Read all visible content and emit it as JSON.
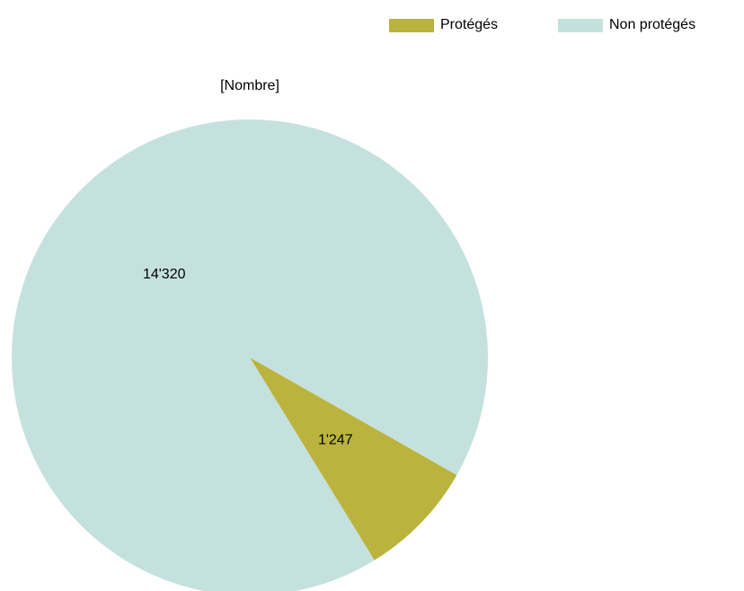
{
  "chart_data": {
    "type": "pie",
    "title": "[Nombre]",
    "categories": [
      "Protégés",
      "Non protégés"
    ],
    "values": [
      1247,
      14320
    ],
    "value_labels": [
      "1'247",
      "14'320"
    ],
    "colors": [
      "#bab43e",
      "#c5e1de"
    ],
    "legend": "top-right"
  }
}
